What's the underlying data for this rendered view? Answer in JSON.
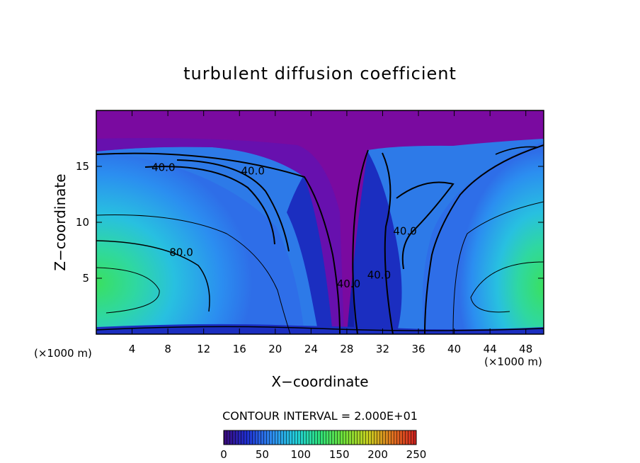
{
  "chart_data": {
    "type": "heatmap",
    "title": "turbulent diffusion coefficient",
    "xlabel": "X−coordinate",
    "ylabel": "Z−coordinate",
    "x_unit": "(×1000 m)",
    "x_unit_right": "(×1000 m)",
    "xlim": [
      0,
      50
    ],
    "ylim": [
      0,
      20
    ],
    "xticks": [
      4,
      8,
      12,
      16,
      20,
      24,
      28,
      32,
      36,
      40,
      44,
      48
    ],
    "yticks": [
      5,
      10,
      15
    ],
    "contour_interval_text": "CONTOUR INTERVAL = 2.000E+01",
    "contour_interval": 20,
    "colorbar": {
      "min": 0,
      "max": 250,
      "ticks": [
        0,
        50,
        100,
        150,
        200,
        250
      ],
      "colors": [
        "#3a0a78",
        "#1f2fd0",
        "#2f8cf0",
        "#22d0d8",
        "#2ee07a",
        "#6ee03a",
        "#c8d020",
        "#e07020",
        "#d02020"
      ]
    },
    "contour_labels": [
      {
        "text": "40.0",
        "x": 7.5,
        "z": 14.9
      },
      {
        "text": "40.0",
        "x": 17.5,
        "z": 14.6
      },
      {
        "text": "80.0",
        "x": 9.5,
        "z": 7.3
      },
      {
        "text": "40.0",
        "x": 34.5,
        "z": 9.2
      },
      {
        "text": "40.0",
        "x": 28.2,
        "z": 4.5
      },
      {
        "text": "40.0",
        "x": 31.6,
        "z": 5.3
      }
    ],
    "color_scale": "purple-blue-cyan-green-red"
  }
}
